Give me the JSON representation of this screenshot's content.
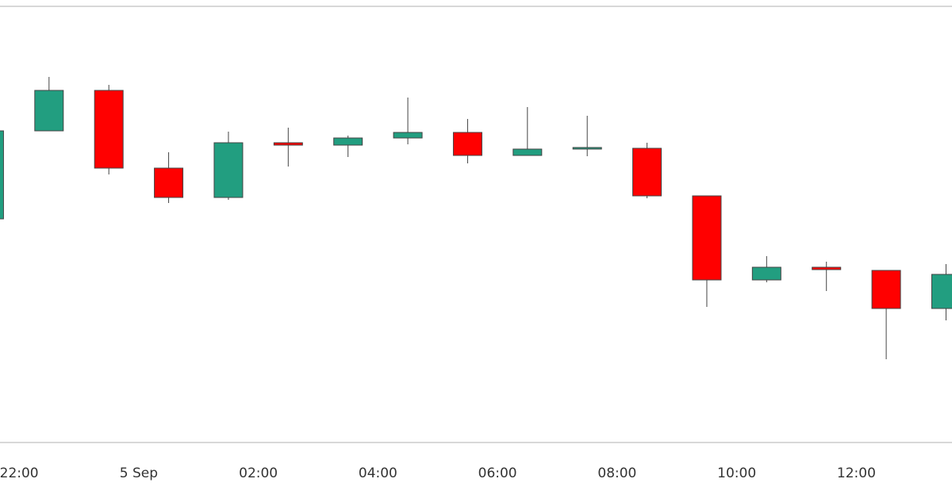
{
  "chart_data": {
    "type": "candlestick",
    "x": [
      21.5,
      22.5,
      23.5,
      24.5,
      25.5,
      26.5,
      27.5,
      28.5,
      29.5,
      30.5,
      31.5,
      32.5,
      33.5,
      34.5,
      35.5,
      36.5,
      37.5
    ],
    "open": [
      282,
      393,
      444,
      346,
      309,
      378,
      375,
      384,
      391,
      362,
      370,
      371,
      311,
      205,
      221,
      217,
      169
    ],
    "high": [
      393,
      461,
      451,
      366,
      392,
      397,
      387,
      435,
      408,
      423,
      412,
      378,
      311,
      235,
      228,
      217,
      225
    ],
    "low": [
      282,
      393,
      338,
      302,
      306,
      348,
      360,
      376,
      352,
      362,
      361,
      308,
      171,
      202,
      191,
      105,
      154
    ],
    "close": [
      393,
      444,
      346,
      309,
      378,
      375,
      384,
      391,
      362,
      370,
      372,
      311,
      205,
      221,
      218,
      169,
      212
    ],
    "up_color": "#229e80",
    "down_color": "#ff0000",
    "xlim": [
      21.68,
      37.6
    ],
    "xticks": [
      {
        "value": 22,
        "label": "22:00"
      },
      {
        "value": 24,
        "label": "5 Sep"
      },
      {
        "value": 26,
        "label": "02:00"
      },
      {
        "value": 28,
        "label": "04:00"
      },
      {
        "value": 30,
        "label": "06:00"
      },
      {
        "value": 32,
        "label": "08:00"
      },
      {
        "value": 34,
        "label": "10:00"
      },
      {
        "value": 36,
        "label": "12:00"
      }
    ],
    "ylim": [
      0,
      550
    ]
  }
}
